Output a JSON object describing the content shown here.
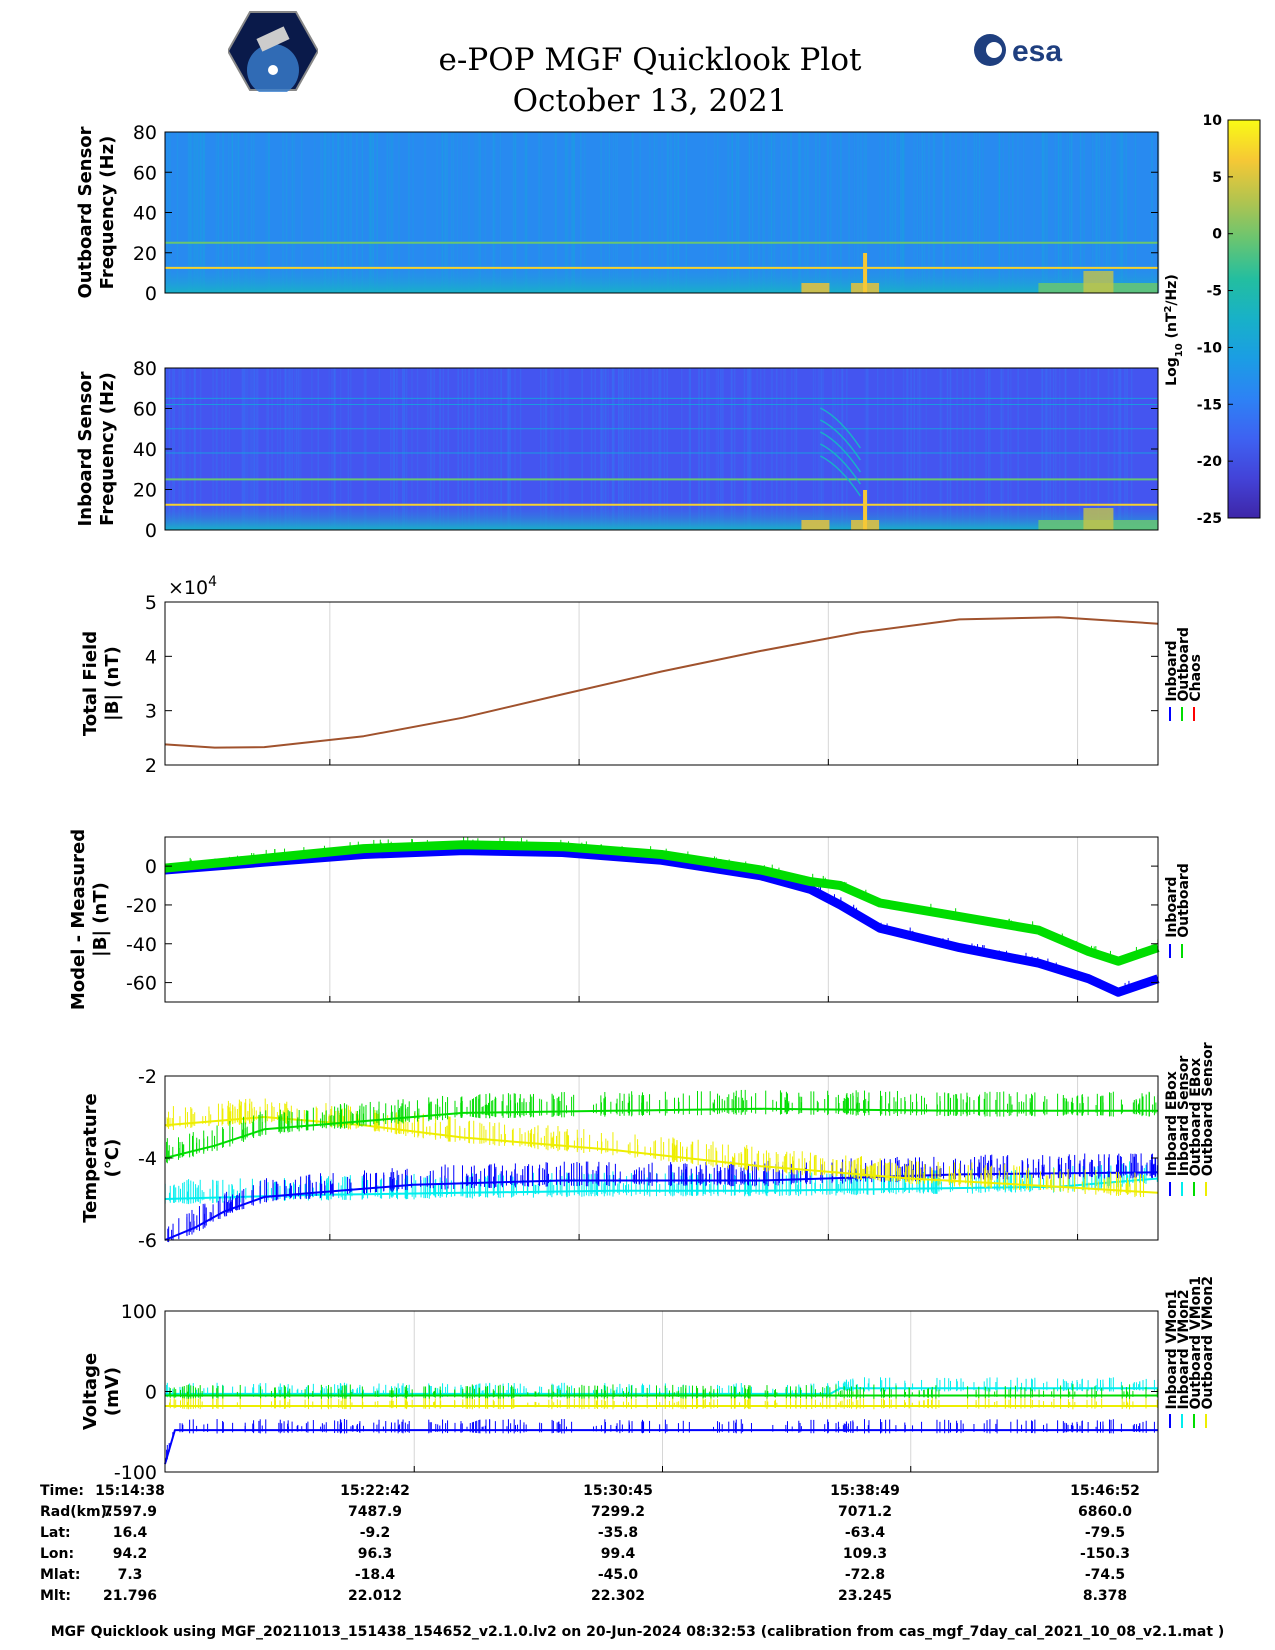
{
  "title": "e-POP MGF Quicklook Plot",
  "date": "October 13, 2021",
  "logos": {
    "left": "cassiope-satellite-logo",
    "right": "esa"
  },
  "colorbar": {
    "label_html": "Log<tspan baseline-shift=\"sub\" font-size=\"10\">10</tspan> (nT<tspan baseline-shift=\"super\" font-size=\"10\">2</tspan>/Hz)",
    "ticks": [
      "10",
      "5",
      "0",
      "-5",
      "-10",
      "-15",
      "-20",
      "-25"
    ]
  },
  "xaxis": {
    "times": [
      "15:14:38",
      "15:22:42",
      "15:30:45",
      "15:38:49",
      "15:46:52"
    ],
    "table": [
      {
        "label": "Time:",
        "values": [
          "15:14:38",
          "15:22:42",
          "15:30:45",
          "15:38:49",
          "15:46:52"
        ]
      },
      {
        "label": "Rad(km):",
        "values": [
          "7597.9",
          "7487.9",
          "7299.2",
          "7071.2",
          "6860.0"
        ]
      },
      {
        "label": "Lat:",
        "values": [
          "16.4",
          "-9.2",
          "-35.8",
          "-63.4",
          "-79.5"
        ]
      },
      {
        "label": "Lon:",
        "values": [
          "94.2",
          "96.3",
          "99.4",
          "109.3",
          "-150.3"
        ]
      },
      {
        "label": "Mlat:",
        "values": [
          "7.3",
          "-18.4",
          "-45.0",
          "-72.8",
          "-74.5"
        ]
      },
      {
        "label": "Mlt:",
        "values": [
          "21.796",
          "22.012",
          "22.302",
          "23.245",
          "8.378"
        ]
      }
    ]
  },
  "chart_data": [
    {
      "type": "heatmap",
      "ylabel": [
        "Outboard Sensor",
        "Frequency (Hz)"
      ],
      "ylim": [
        0,
        80
      ],
      "yticks": [
        "80",
        "60",
        "40",
        "20",
        "0"
      ],
      "colorscale": "parula",
      "clim": [
        -25,
        10
      ],
      "features": {
        "lines_hz": [
          12.5,
          25
        ],
        "bursts_time": [
          "15:38:49",
          "15:45:00"
        ]
      }
    },
    {
      "type": "heatmap",
      "ylabel": [
        "Inboard Sensor",
        "Frequency (Hz)"
      ],
      "ylim": [
        0,
        80
      ],
      "yticks": [
        "80",
        "60",
        "40",
        "20",
        "0"
      ],
      "colorscale": "parula",
      "clim": [
        -25,
        10
      ],
      "features": {
        "lines_hz": [
          12.5,
          25,
          38,
          50,
          62,
          65
        ],
        "bursts_time": [
          "15:38:49",
          "15:45:00"
        ]
      }
    },
    {
      "type": "line",
      "ylabel": [
        "Total Field",
        "|B| (nT)"
      ],
      "ylim": [
        20000,
        50000
      ],
      "yticks": [
        "5",
        "4",
        "3",
        "2"
      ],
      "exponent": "×10",
      "exponent_sup": "4",
      "legend": [
        "Inboard",
        "Outboard",
        "Chaos"
      ],
      "legend_colors": [
        "#0000ff",
        "#00dd00",
        "#ff0000"
      ],
      "series": [
        {
          "name": "Chaos",
          "color": "#a0522d",
          "x": [
            0,
            0.05,
            0.1,
            0.2,
            0.3,
            0.4,
            0.5,
            0.6,
            0.7,
            0.8,
            0.9,
            1.0
          ],
          "values": [
            23800,
            23200,
            23300,
            25300,
            28700,
            33000,
            37200,
            41000,
            44400,
            46800,
            47200,
            46000
          ]
        }
      ]
    },
    {
      "type": "line",
      "ylabel": [
        "Model - Measured",
        "|B| (nT)"
      ],
      "ylim": [
        -70,
        15
      ],
      "yticks": [
        "0",
        "-20",
        "-40",
        "-60"
      ],
      "legend": [
        "Inboard",
        "Outboard"
      ],
      "legend_colors": [
        "#0000ff",
        "#00dd00"
      ],
      "series": [
        {
          "name": "Inboard",
          "color": "#0000ff",
          "x": [
            0,
            0.1,
            0.2,
            0.3,
            0.4,
            0.5,
            0.6,
            0.65,
            0.68,
            0.72,
            0.8,
            0.88,
            0.93,
            0.96,
            1.0
          ],
          "values": [
            -2,
            2,
            6,
            8,
            7,
            3,
            -5,
            -12,
            -20,
            -32,
            -42,
            -50,
            -58,
            -65,
            -58
          ]
        },
        {
          "name": "Outboard",
          "color": "#00dd00",
          "x": [
            0,
            0.1,
            0.2,
            0.3,
            0.4,
            0.5,
            0.6,
            0.65,
            0.68,
            0.72,
            0.8,
            0.88,
            0.93,
            0.96,
            1.0
          ],
          "values": [
            -1,
            4,
            9,
            11,
            10,
            6,
            -2,
            -8,
            -10,
            -19,
            -26,
            -33,
            -44,
            -49,
            -42
          ]
        }
      ]
    },
    {
      "type": "line",
      "ylabel": [
        "Temperature",
        "(°C)"
      ],
      "ylim": [
        -6,
        -2
      ],
      "yticks": [
        "-2",
        "-4",
        "-6"
      ],
      "legend": [
        "Inboard EBox",
        "Inboard Sensor",
        "Outboard EBox",
        "Outboard Sensor"
      ],
      "legend_colors": [
        "#0000ff",
        "#00eeee",
        "#00dd00",
        "#eeee00"
      ],
      "series": [
        {
          "name": "Inboard Sensor",
          "color": "#00eeee",
          "x": [
            0,
            0.15,
            0.3,
            0.45,
            0.6,
            0.75,
            0.9,
            1.0
          ],
          "values": [
            -5.0,
            -4.9,
            -4.85,
            -4.8,
            -4.8,
            -4.75,
            -4.7,
            -4.5
          ]
        },
        {
          "name": "Inboard EBox",
          "color": "#0000ff",
          "x": [
            0,
            0.03,
            0.06,
            0.1,
            0.15,
            0.25,
            0.4,
            0.6,
            0.8,
            1.0
          ],
          "values": [
            -6.0,
            -5.7,
            -5.3,
            -4.95,
            -4.85,
            -4.65,
            -4.55,
            -4.55,
            -4.4,
            -4.35
          ]
        },
        {
          "name": "Outboard Sensor",
          "color": "#eeee00",
          "x": [
            0,
            0.1,
            0.2,
            0.3,
            0.45,
            0.6,
            0.75,
            0.9,
            1.0
          ],
          "values": [
            -3.2,
            -3.0,
            -3.2,
            -3.5,
            -3.8,
            -4.2,
            -4.5,
            -4.7,
            -4.85
          ]
        },
        {
          "name": "Outboard EBox",
          "color": "#00dd00",
          "x": [
            0,
            0.05,
            0.1,
            0.2,
            0.3,
            0.45,
            0.6,
            0.8,
            1.0
          ],
          "values": [
            -4.0,
            -3.7,
            -3.3,
            -3.1,
            -2.9,
            -2.85,
            -2.8,
            -2.85,
            -2.85
          ]
        }
      ]
    },
    {
      "type": "line",
      "ylabel": [
        "Voltage",
        "(mV)"
      ],
      "ylim": [
        -100,
        100
      ],
      "yticks": [
        "100",
        "0",
        "-100"
      ],
      "legend": [
        "Inboard VMon1",
        "Inboard VMon2",
        "Outboard VMon1",
        "Outboard VMon2"
      ],
      "legend_colors": [
        "#0000ff",
        "#00eeee",
        "#00dd00",
        "#eeee00"
      ],
      "series": [
        {
          "name": "Inboard VMon1",
          "color": "#0000ff",
          "x": [
            0,
            0.01,
            1.0
          ],
          "values": [
            -90,
            -48,
            -48
          ]
        },
        {
          "name": "Inboard VMon2",
          "color": "#00eeee",
          "x": [
            0,
            0.67,
            0.68,
            1.0
          ],
          "values": [
            -3,
            -3,
            4,
            4
          ]
        },
        {
          "name": "Outboard VMon2",
          "color": "#eeee00",
          "x": [
            0,
            0.5,
            1.0
          ],
          "values": [
            -18,
            -18,
            -18
          ]
        },
        {
          "name": "Outboard VMon1",
          "color": "#00dd00",
          "x": [
            0,
            1.0
          ],
          "values": [
            -5,
            -5
          ]
        }
      ]
    }
  ],
  "footer": "MGF Quicklook using MGF_20211013_151438_154652_v2.1.0.lv2 on 20-Jun-2024 08:32:53 (calibration from cas_mgf_7day_cal_2021_10_08_v2.1.mat )"
}
